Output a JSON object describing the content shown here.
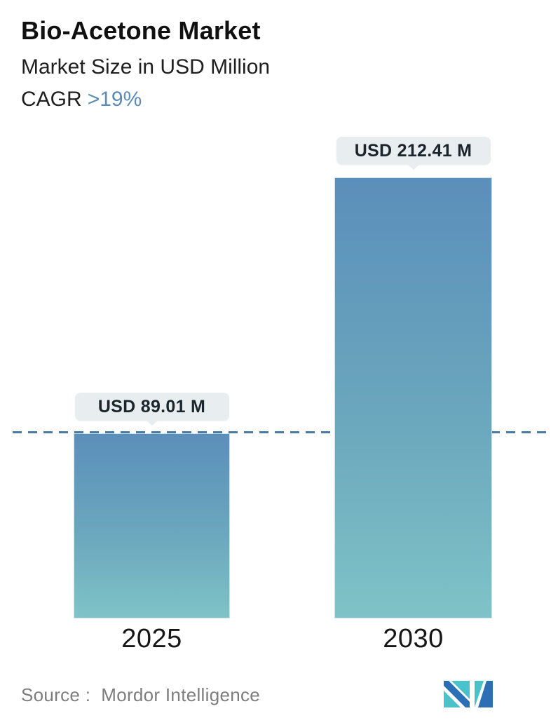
{
  "header": {
    "cagr_label": "CAGR",
    "cagr_value": ">19%"
  },
  "chart_data": {
    "type": "bar",
    "title": "Bio-Acetone Market",
    "subtitle": "Market Size in USD Million",
    "unit": "USD Million",
    "categories": [
      "2025",
      "2030"
    ],
    "values": [
      89.01,
      212.41
    ],
    "value_labels": [
      "USD 89.01 M",
      "USD 212.41 M"
    ],
    "cagr": ">19%",
    "ylim": [
      0,
      225
    ],
    "grid": false,
    "legend": false,
    "annotations": [
      "dashed horizontal reference line at the 2025 value level"
    ]
  },
  "footer": {
    "source_label": "Source :",
    "source_value": "Mordor Intelligence"
  },
  "colors": {
    "accent_blue": "#5b8cb8",
    "bar_gradient_top": "#5b8fbb",
    "bar_gradient_bottom": "#7fc3c7",
    "dashed_line": "#4a7ba6",
    "bubble_bg": "#e8edef",
    "bubble_text": "#1b262c",
    "source_text": "#7d7d7d",
    "logo_teal": "#49c3c9",
    "logo_blue": "#2b6fb5"
  }
}
